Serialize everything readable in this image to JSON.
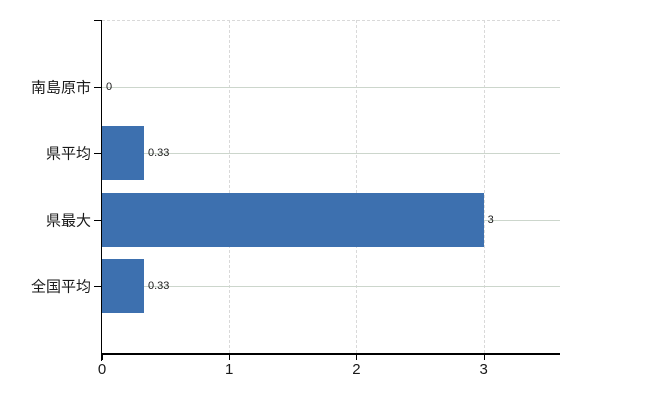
{
  "chart_data": {
    "type": "bar",
    "orientation": "horizontal",
    "title": "",
    "categories": [
      "南島原市",
      "県平均",
      "県最大",
      "全国平均"
    ],
    "values": [
      0,
      0.33,
      3,
      0.33
    ],
    "value_labels": [
      "0",
      "0.33",
      "3",
      "0.33"
    ],
    "x_ticks": [
      0,
      1,
      2,
      3
    ],
    "x_tick_labels": [
      "0",
      "1",
      "2",
      "3"
    ],
    "xlim": [
      0,
      3.6
    ],
    "ylabel": "",
    "xlabel": "",
    "legend": "none",
    "grid": {
      "horizontal": "solid, one line per category center",
      "vertical": "dashed at x ticks 1,2,3",
      "top_border": "dashed"
    },
    "colors": {
      "bar": "#3d70af",
      "axis": "#000000",
      "hgrid": "#ccd6cc",
      "vgrid": "#d9d9d9",
      "text": "#1a1a1a",
      "background": "#ffffff"
    }
  }
}
